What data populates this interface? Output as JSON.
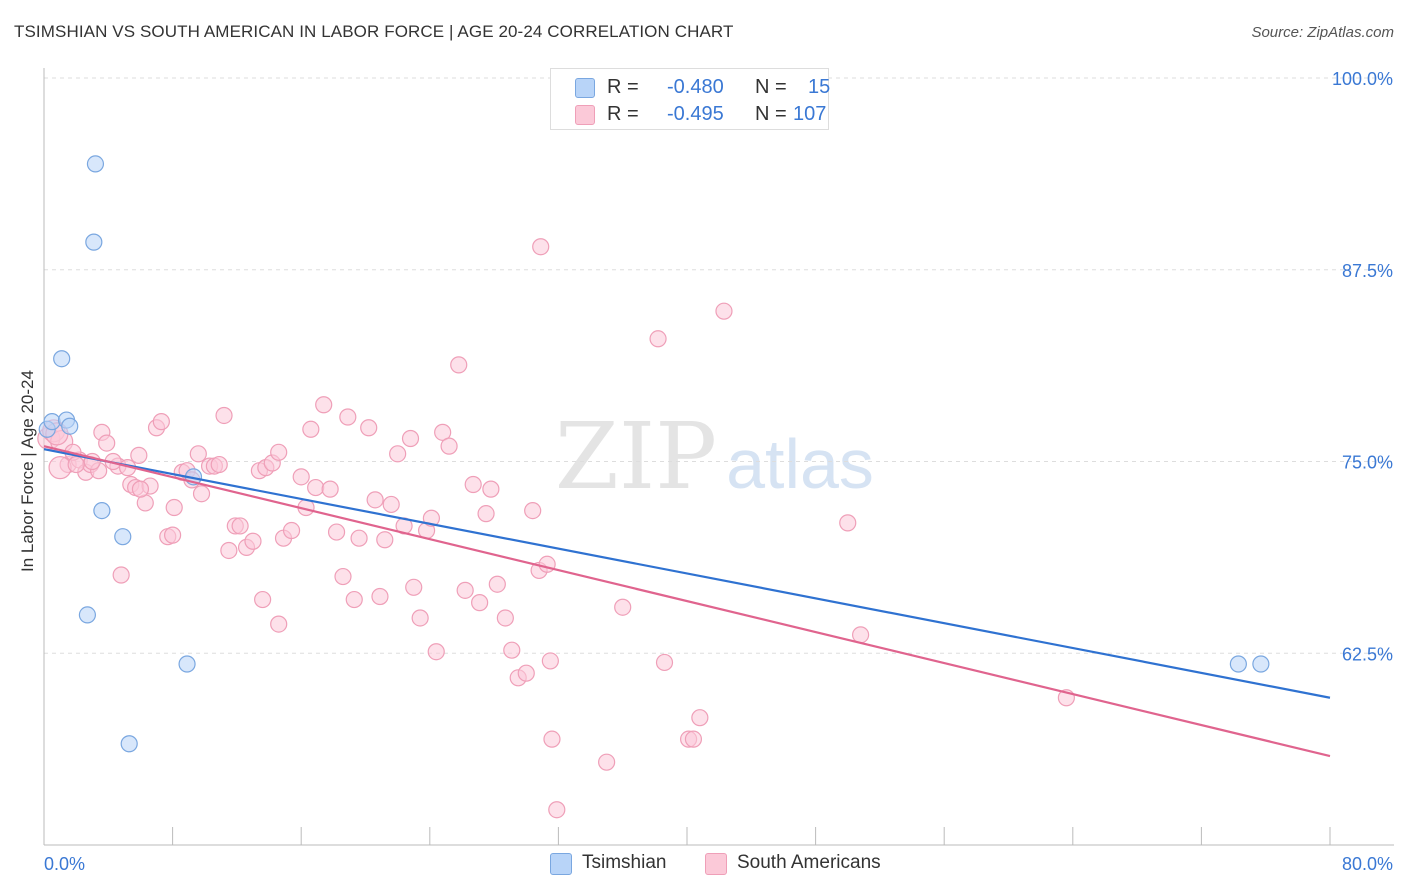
{
  "title": "TSIMSHIAN VS SOUTH AMERICAN IN LABOR FORCE | AGE 20-24 CORRELATION CHART",
  "source": "Source: ZipAtlas.com",
  "watermark": {
    "zip": "ZIP",
    "atlas": "atlas"
  },
  "legend": {
    "r_label": "R = ",
    "n_label": "N = ",
    "series": [
      {
        "name": "Tsimshian",
        "r": "-0.480",
        "n": "15",
        "fill": "#b8d4f8",
        "stroke": "#7aa7e0"
      },
      {
        "name": "South Americans",
        "r": "-0.495",
        "n": "107",
        "fill": "#fbc9d8",
        "stroke": "#ef9fb8"
      }
    ]
  },
  "chart_data": {
    "type": "scatter",
    "title": "TSIMSHIAN VS SOUTH AMERICAN IN LABOR FORCE | AGE 20-24 CORRELATION CHART",
    "ylabel": "In Labor Force | Age 20-24",
    "xlabel": "",
    "xlim": [
      0,
      80
    ],
    "ylim": [
      50,
      100
    ],
    "x_tick_labels": [
      "0.0%",
      "80.0%"
    ],
    "y_ticks": [
      62.5,
      75.0,
      87.5,
      100.0
    ],
    "y_tick_labels": [
      "62.5%",
      "75.0%",
      "87.5%",
      "100.0%"
    ],
    "grid": "horizontal dashed",
    "legend_position": "top-center",
    "series": [
      {
        "name": "Tsimshian",
        "color": "#b8d4f8",
        "edge": "#7aa7e0",
        "line_color": "#2f72d1",
        "trend": {
          "x": [
            0,
            80
          ],
          "y": [
            75.8,
            59.6
          ]
        },
        "points": [
          [
            0.2,
            77.1
          ],
          [
            0.5,
            77.6
          ],
          [
            1.4,
            77.7
          ],
          [
            1.6,
            77.3
          ],
          [
            3.2,
            94.4
          ],
          [
            3.1,
            89.3
          ],
          [
            1.1,
            81.7
          ],
          [
            3.6,
            71.8
          ],
          [
            4.9,
            70.1
          ],
          [
            2.7,
            65.0
          ],
          [
            8.9,
            61.8
          ],
          [
            5.3,
            56.6
          ],
          [
            9.3,
            74.0
          ],
          [
            74.3,
            61.8
          ],
          [
            75.7,
            61.8
          ]
        ]
      },
      {
        "name": "South Americans",
        "color": "#fbc9d8",
        "edge": "#ef9fb8",
        "line_color": "#e0648e",
        "trend": {
          "x": [
            0,
            80
          ],
          "y": [
            76.0,
            55.8
          ]
        },
        "points": [
          [
            0.3,
            76.5
          ],
          [
            0.6,
            77.0
          ],
          [
            1.1,
            76.3
          ],
          [
            1.5,
            74.8
          ],
          [
            2.2,
            75.1
          ],
          [
            1.8,
            75.6
          ],
          [
            2.6,
            74.3
          ],
          [
            2.9,
            74.8
          ],
          [
            3.6,
            76.9
          ],
          [
            3.4,
            74.4
          ],
          [
            3.9,
            76.2
          ],
          [
            4.6,
            74.7
          ],
          [
            4.8,
            67.6
          ],
          [
            4.3,
            75.0
          ],
          [
            5.4,
            73.5
          ],
          [
            5.7,
            73.3
          ],
          [
            5.9,
            75.4
          ],
          [
            6.3,
            72.3
          ],
          [
            6.6,
            73.4
          ],
          [
            7.0,
            77.2
          ],
          [
            7.3,
            77.6
          ],
          [
            7.7,
            70.1
          ],
          [
            8.1,
            72.0
          ],
          [
            8.6,
            74.3
          ],
          [
            8.9,
            74.4
          ],
          [
            9.2,
            73.8
          ],
          [
            9.6,
            75.5
          ],
          [
            9.8,
            72.9
          ],
          [
            10.3,
            74.7
          ],
          [
            10.6,
            74.7
          ],
          [
            10.9,
            74.8
          ],
          [
            11.2,
            78.0
          ],
          [
            11.5,
            69.2
          ],
          [
            11.9,
            70.8
          ],
          [
            12.2,
            70.8
          ],
          [
            12.6,
            69.4
          ],
          [
            13.0,
            69.8
          ],
          [
            13.4,
            74.4
          ],
          [
            13.8,
            74.6
          ],
          [
            14.2,
            74.9
          ],
          [
            14.6,
            75.6
          ],
          [
            14.9,
            70.0
          ],
          [
            15.4,
            70.5
          ],
          [
            16.0,
            74.0
          ],
          [
            16.3,
            72.0
          ],
          [
            16.6,
            77.1
          ],
          [
            16.9,
            73.3
          ],
          [
            17.4,
            78.7
          ],
          [
            17.8,
            73.2
          ],
          [
            18.2,
            70.4
          ],
          [
            18.6,
            67.5
          ],
          [
            18.9,
            77.9
          ],
          [
            19.3,
            66.0
          ],
          [
            19.6,
            70.0
          ],
          [
            20.2,
            77.2
          ],
          [
            20.6,
            72.5
          ],
          [
            20.9,
            66.2
          ],
          [
            21.2,
            69.9
          ],
          [
            21.6,
            72.2
          ],
          [
            22.0,
            75.5
          ],
          [
            22.4,
            70.8
          ],
          [
            22.8,
            76.5
          ],
          [
            23.0,
            66.8
          ],
          [
            23.4,
            64.8
          ],
          [
            23.8,
            70.5
          ],
          [
            24.1,
            71.3
          ],
          [
            24.4,
            62.6
          ],
          [
            24.8,
            76.9
          ],
          [
            25.2,
            76.0
          ],
          [
            25.8,
            81.3
          ],
          [
            26.2,
            66.6
          ],
          [
            26.7,
            73.5
          ],
          [
            27.1,
            65.8
          ],
          [
            27.5,
            71.6
          ],
          [
            27.8,
            73.2
          ],
          [
            28.2,
            67.0
          ],
          [
            28.7,
            64.8
          ],
          [
            29.1,
            62.7
          ],
          [
            29.5,
            60.9
          ],
          [
            30.0,
            61.2
          ],
          [
            30.4,
            71.8
          ],
          [
            30.8,
            67.9
          ],
          [
            31.3,
            68.3
          ],
          [
            31.6,
            56.9
          ],
          [
            30.9,
            89.0
          ],
          [
            31.9,
            52.3
          ],
          [
            31.5,
            62.0
          ],
          [
            35.0,
            55.4
          ],
          [
            36.0,
            65.5
          ],
          [
            38.2,
            83.0
          ],
          [
            38.6,
            61.9
          ],
          [
            40.1,
            56.9
          ],
          [
            40.8,
            58.3
          ],
          [
            40.4,
            56.9
          ],
          [
            42.3,
            84.8
          ],
          [
            50.0,
            71.0
          ],
          [
            50.8,
            63.7
          ],
          [
            63.6,
            59.6
          ],
          [
            1.0,
            74.6
          ],
          [
            3.0,
            75.0
          ],
          [
            2.0,
            74.8
          ],
          [
            0.8,
            76.8
          ],
          [
            5.2,
            74.6
          ],
          [
            6.0,
            73.2
          ],
          [
            8.0,
            70.2
          ],
          [
            13.6,
            66.0
          ],
          [
            14.6,
            64.4
          ]
        ]
      }
    ]
  }
}
